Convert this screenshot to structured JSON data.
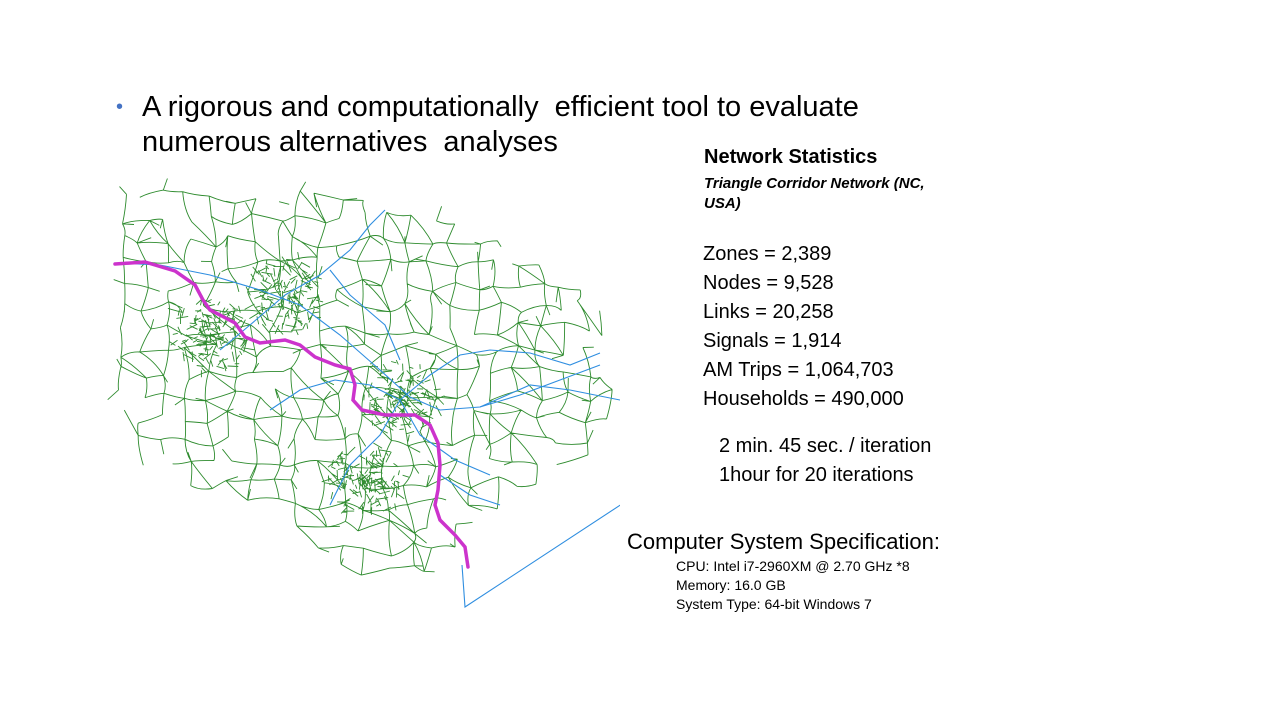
{
  "bullet": {
    "symbol": "•",
    "line1": "A rigorous and computationally  efficient tool to evaluate",
    "line2": "numerous alternatives  analyses"
  },
  "network_stats": {
    "title": "Network Statistics",
    "subtitle_line1": "Triangle Corridor Network (NC,",
    "subtitle_line2": "USA)",
    "items": [
      "Zones = 2,389",
      "Nodes = 9,528",
      "Links = 20,258",
      "Signals = 1,914",
      "AM Trips = 1,064,703",
      "Households = 490,000"
    ]
  },
  "timing": {
    "line1": "2 min. 45 sec. / iteration",
    "line2": "1hour for 20 iterations"
  },
  "spec": {
    "title": "Computer System Specification:",
    "cpu": "CPU: Intel i7-2960XM @ 2.70 GHz *8",
    "memory": "Memory: 16.0 GB",
    "system": "System Type: 64-bit Windows 7"
  },
  "colors": {
    "bullet": "#4472c4",
    "network_links": "#2e8b2e",
    "highways": "#2f8ee0",
    "corridor": "#cc33cc"
  }
}
